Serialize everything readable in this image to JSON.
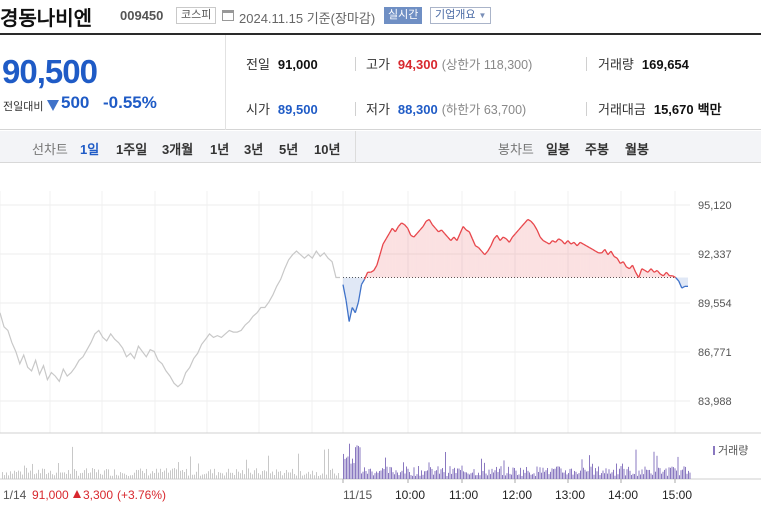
{
  "header": {
    "name": "경동나비엔",
    "code": "009450",
    "market": "코스피",
    "date": "2024.11.15 기준(장마감)",
    "realtime_label": "실시간",
    "company_info_label": "기업개요"
  },
  "quote": {
    "price": "90,500",
    "change_label": "전일대비",
    "change": "500",
    "change_pct": "-0.55%",
    "prev_close_label": "전일",
    "prev_close": "91,000",
    "high_label": "고가",
    "high": "94,300",
    "upper_limit": "(상한가 118,300)",
    "volume_label": "거래량",
    "volume": "169,654",
    "open_label": "시가",
    "open": "89,500",
    "low_label": "저가",
    "low": "88,300",
    "lower_limit": "(하한가 63,700)",
    "value_label": "거래대금",
    "value": "15,670",
    "value_unit": "백만"
  },
  "tabs": {
    "line_chart_label": "선차트",
    "periods": [
      "1일",
      "1주일",
      "3개월",
      "1년",
      "3년",
      "5년",
      "10년"
    ],
    "active_period": "1일",
    "candle_label": "봉차트",
    "candles": [
      "일봉",
      "주봉",
      "월봉"
    ]
  },
  "chart_data": {
    "type": "line",
    "y_ticks": [
      "95,120",
      "92,337",
      "89,554",
      "86,771",
      "83,988"
    ],
    "ylim": [
      83988,
      95120
    ],
    "x_ticks": [
      "11/15",
      "10:00",
      "11:00",
      "12:00",
      "13:00",
      "14:00",
      "15:00"
    ],
    "reference_price": 91000,
    "prev_day_label": "1/14",
    "prev_day_price": "91,000",
    "prev_day_change": "3,300",
    "prev_day_pct": "(+3.76%)",
    "volume_legend": "거래량",
    "colors": {
      "up": "#e8464b",
      "down": "#3f72c9",
      "prev": "#c8c8c8",
      "volume": "#8a78c0"
    },
    "previous_day_series": [
      89000,
      88200,
      88000,
      87300,
      86800,
      86100,
      86600,
      85900,
      85700,
      86300,
      85500,
      86000,
      85200,
      85600,
      85400,
      85100,
      85800,
      85400,
      85600,
      85900,
      86300,
      86500,
      86900,
      87300,
      87800,
      88000,
      87600,
      87400,
      87800,
      87500,
      87300,
      87000,
      86500,
      86700,
      86400,
      87100,
      86800,
      86500,
      86900,
      86800,
      86300,
      86100,
      85700,
      85400,
      85000,
      84800,
      85000,
      85600,
      85900,
      86400,
      86700,
      87200,
      87500,
      87800,
      87600,
      87700,
      87600,
      87800,
      88000,
      87900,
      87900,
      88000,
      88300,
      88500,
      88800,
      89000,
      89300,
      89300,
      89600,
      90000,
      90500,
      90900,
      91500,
      92000,
      92300,
      92500,
      92300,
      92100,
      92300,
      92100,
      92500,
      92200,
      92400,
      92100,
      91900,
      91000,
      91000
    ],
    "intraday_series": [
      90600,
      89700,
      88500,
      89300,
      89000,
      89600,
      90600,
      90900,
      91300,
      91300,
      91400,
      91700,
      92300,
      92900,
      93200,
      93500,
      93800,
      93600,
      93900,
      94100,
      94000,
      93800,
      93400,
      93300,
      93500,
      93700,
      93900,
      94200,
      94300,
      94000,
      93800,
      93600,
      93700,
      93500,
      93300,
      93100,
      93300,
      93100,
      93500,
      93900,
      93700,
      93600,
      93200,
      92800,
      92700,
      92500,
      92300,
      92500,
      92800,
      93200,
      93400,
      93100,
      93300,
      93200,
      93000,
      93300,
      93500,
      93700,
      93900,
      94100,
      94300,
      94200,
      94000,
      93700,
      93300,
      93100,
      93000,
      92900,
      93100,
      93000,
      93200,
      93100,
      92900,
      93100,
      92900,
      93000,
      92800,
      93000,
      92900,
      92800,
      92700,
      92600,
      92500,
      92400,
      92400,
      92600,
      92300,
      92500,
      92200,
      92100,
      91800,
      91900,
      91600,
      91500,
      91700,
      91300,
      91000,
      91500,
      91400,
      91300,
      91500,
      91300,
      91400,
      91200,
      91100,
      91300,
      91100,
      91100,
      91000,
      90800,
      90400,
      90500,
      90500
    ]
  }
}
